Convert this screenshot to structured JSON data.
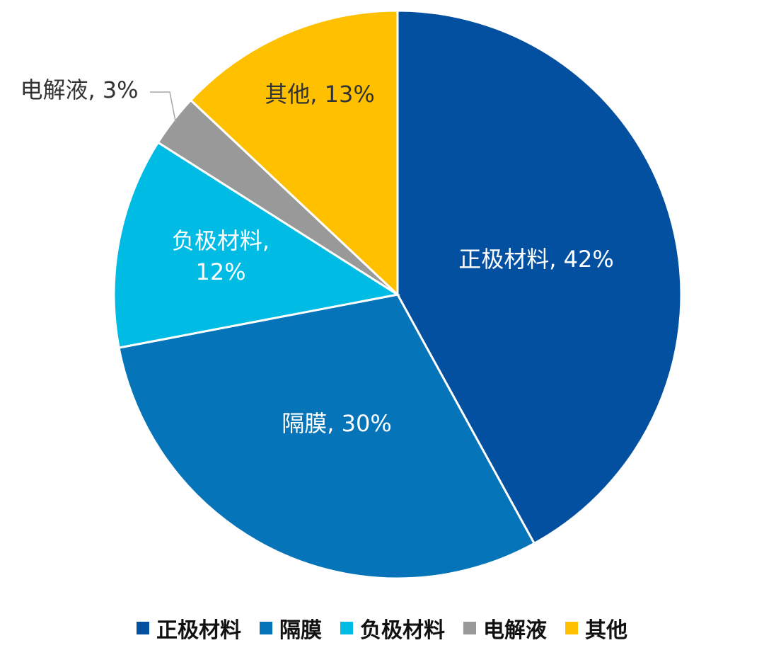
{
  "chart_data": {
    "type": "pie",
    "title": "",
    "slices": [
      {
        "name": "正极材料",
        "value": 42,
        "label": "正极材料, 42%",
        "color": "#0450A0",
        "label_color": "#FFFFFF"
      },
      {
        "name": "隔膜",
        "value": 30,
        "label": "隔膜, 30%",
        "color": "#0574B8",
        "label_color": "#FFFFFF"
      },
      {
        "name": "负极材料",
        "value": 12,
        "label_lines": [
          "负极材料,",
          "12%"
        ],
        "color": "#00BCE4",
        "label_color": "#FFFFFF"
      },
      {
        "name": "电解液",
        "value": 3,
        "label": "电解液, 3%",
        "color": "#999999",
        "label_color": "#333333",
        "label_outside": true
      },
      {
        "name": "其他",
        "value": 13,
        "label": "其他, 13%",
        "color": "#FFC000",
        "label_color": "#333333"
      }
    ],
    "start_angle": "12 o'clock",
    "direction": "clockwise",
    "legend": {
      "placement": "bottom",
      "items": [
        "正极材料",
        "隔膜",
        "负极材料",
        "电解液",
        "其他"
      ]
    }
  }
}
